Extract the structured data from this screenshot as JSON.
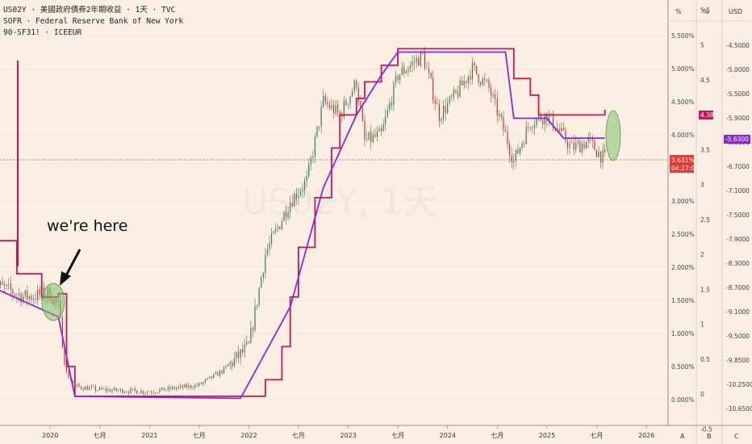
{
  "legend": {
    "line1": "US02Y · 美國政府債券2年期收益 · 1天 · TVC",
    "line2": "SOFR · Federal Reserve Bank of New York",
    "line3": "90-SF31! · ICEEUR"
  },
  "watermark": "US02Y, 1天",
  "annotation": "we're here",
  "axes": {
    "a": {
      "header": "%",
      "footer": "A",
      "ticks": [
        "5.500%",
        "5.000%",
        "4.500%",
        "4.000%",
        "3.500%",
        "3.000%",
        "2.500%",
        "2.000%",
        "1.500%",
        "1.000%",
        "0.500%",
        "0.000%"
      ]
    },
    "b": {
      "header": "%",
      "footer": "B",
      "ticks": [
        "5.5",
        "5",
        "4.5",
        "4",
        "3.5",
        "3",
        "2.5",
        "2",
        "1.5",
        "1",
        "0.5",
        "0",
        "-0.5"
      ]
    },
    "c": {
      "header": "USD",
      "footer": "C",
      "ticks": [
        "-4.5000",
        "-5.0000",
        "-5.5000",
        "-5.9000",
        "-6.3000",
        "-6.7000",
        "-7.1000",
        "-7.5000",
        "-7.9000",
        "-8.3000",
        "-8.7000",
        "-9.1000",
        "-9.5000",
        "-9.8500",
        "-10.2500",
        "-10.6500"
      ]
    }
  },
  "x_ticks": [
    "2020",
    "七月",
    "2021",
    "七月",
    "2022",
    "七月",
    "2023",
    "七月",
    "2024",
    "七月",
    "2025",
    "七月",
    "2026"
  ],
  "badges": {
    "sofr": "4.38",
    "future": "-5.6300",
    "us02y": "3.631%",
    "countdown": "04:27:08"
  },
  "colors": {
    "background": "#fbefe3",
    "us02y_up": "#2e7d52",
    "us02y_down": "#c0392b",
    "sofr": "#c2185b",
    "future": "#8e24d8",
    "highlight": "#7fbf6a"
  },
  "chart_data": {
    "type": "line",
    "x_range": [
      "2019-06",
      "2026-07"
    ],
    "ylim": [
      -0.2,
      5.8
    ],
    "series": [
      {
        "name": "US02Y",
        "x": [
          "2019-06",
          "2019-10",
          "2020-01",
          "2020-02",
          "2020-03",
          "2020-04",
          "2020-07",
          "2021-01",
          "2021-07",
          "2021-10",
          "2022-01",
          "2022-03",
          "2022-06",
          "2022-08",
          "2022-10",
          "2022-12",
          "2023-02",
          "2023-03",
          "2023-05",
          "2023-07",
          "2023-10",
          "2023-12",
          "2024-02",
          "2024-04",
          "2024-06",
          "2024-08",
          "2024-09",
          "2024-11",
          "2025-01",
          "2025-04",
          "2025-06",
          "2025-08"
        ],
        "values": [
          1.75,
          1.55,
          1.6,
          1.4,
          0.4,
          0.2,
          0.15,
          0.12,
          0.22,
          0.45,
          0.8,
          2.2,
          3.0,
          3.3,
          4.5,
          4.3,
          4.8,
          3.9,
          4.0,
          4.9,
          5.2,
          4.3,
          4.6,
          5.0,
          4.7,
          4.0,
          3.6,
          4.2,
          4.3,
          3.8,
          3.9,
          3.63
        ]
      },
      {
        "name": "SOFR",
        "x": [
          "2019-06",
          "2019-09",
          "2019-12",
          "2020-02",
          "2020-03",
          "2020-04",
          "2021-12",
          "2022-03",
          "2022-05",
          "2022-06",
          "2022-07",
          "2022-09",
          "2022-11",
          "2022-12",
          "2023-02",
          "2023-03",
          "2023-05",
          "2023-07",
          "2024-09",
          "2024-11",
          "2024-12",
          "2025-08"
        ],
        "values": [
          2.4,
          1.9,
          1.55,
          1.6,
          0.5,
          0.05,
          0.05,
          0.3,
          0.8,
          1.55,
          2.3,
          3.05,
          3.8,
          4.3,
          4.55,
          4.8,
          5.05,
          5.3,
          4.85,
          4.6,
          4.3,
          4.38
        ]
      },
      {
        "name": "90-SF31!",
        "x": [
          "2019-06",
          "2020-02",
          "2020-04",
          "2021-12",
          "2022-06",
          "2022-10",
          "2023-02",
          "2023-05",
          "2023-07",
          "2024-08",
          "2024-09",
          "2025-01",
          "2025-03",
          "2025-08"
        ],
        "values": [
          1.7,
          1.25,
          0.05,
          0.02,
          1.4,
          3.2,
          4.3,
          4.9,
          5.25,
          5.25,
          4.25,
          4.25,
          3.95,
          3.95
        ]
      }
    ]
  }
}
